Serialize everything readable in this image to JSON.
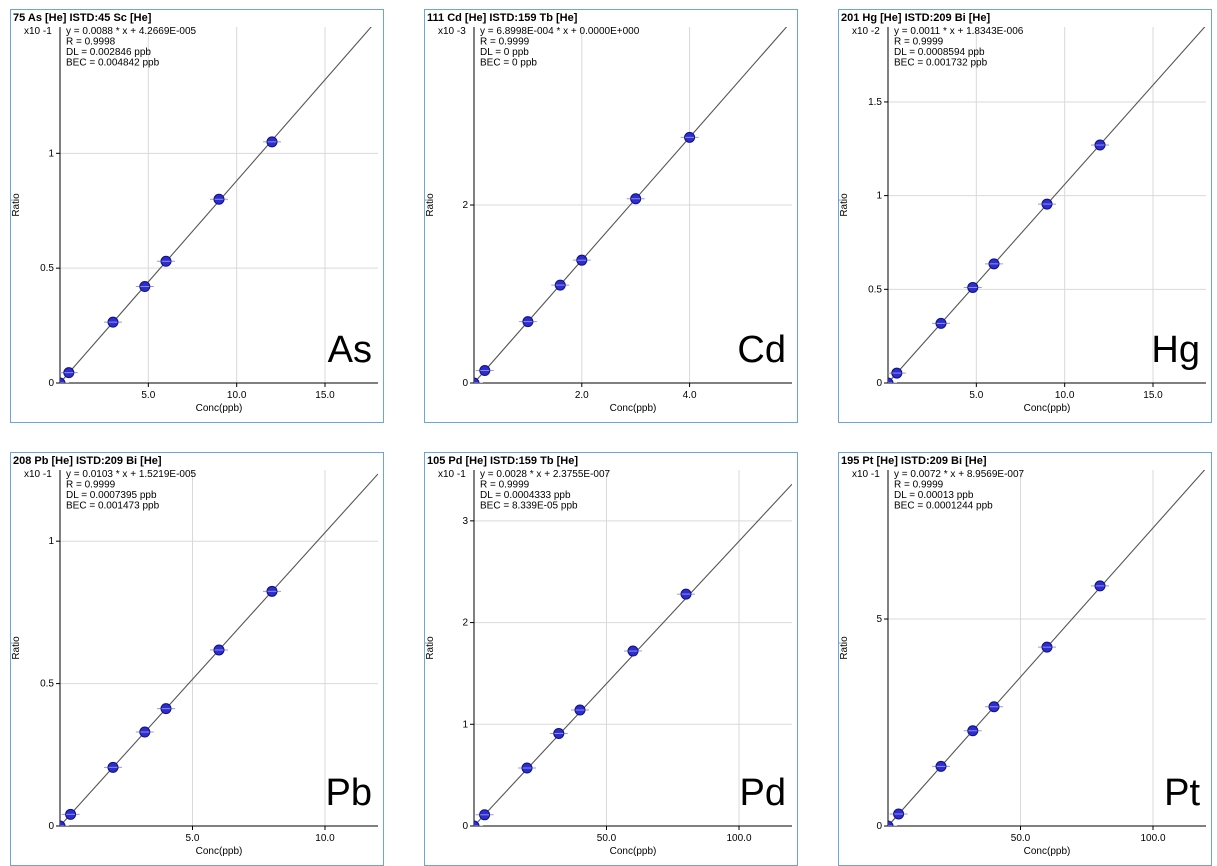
{
  "chart_data": [
    {
      "type": "scatter",
      "title": "75 As [He] ISTD:45 Sc [He]",
      "element": "As",
      "exponent_label": "x10 -1",
      "xlabel": "Conc(ppb)",
      "ylabel": "Ratio",
      "stats": [
        "y = 0.0088 * x  + 4.2669E-005",
        "R = 0.9998",
        "DL = 0.002846 ppb",
        "BEC = 0.004842 ppb"
      ],
      "xlim": [
        0,
        18
      ],
      "ylim": [
        0,
        1.55
      ],
      "xticks": [
        5,
        10,
        15
      ],
      "xtick_labels": [
        "5.0",
        "10.0",
        "15.0"
      ],
      "yticks": [
        0,
        0.5,
        1
      ],
      "ytick_labels": [
        "0",
        "0.5",
        "1"
      ],
      "grid": true,
      "fit": {
        "slope": 0.088,
        "intercept": 0.0004
      },
      "points": {
        "x": [
          0,
          0.5,
          3,
          4.8,
          6,
          9,
          12
        ],
        "y": [
          0,
          0.045,
          0.265,
          0.42,
          0.53,
          0.8,
          1.05
        ]
      }
    },
    {
      "type": "scatter",
      "title": "111 Cd [He] ISTD:159 Tb [He]",
      "element": "Cd",
      "exponent_label": "x10 -3",
      "xlabel": "Conc(ppb)",
      "ylabel": "Ratio",
      "stats": [
        "y = 6.8998E-004 * x  + 0.0000E+000",
        "R = 0.9999",
        "DL = 0 ppb",
        "BEC = 0 ppb"
      ],
      "xlim": [
        0,
        5.9
      ],
      "ylim": [
        0,
        4.0
      ],
      "xticks": [
        2,
        4
      ],
      "xtick_labels": [
        "2.0",
        "4.0"
      ],
      "yticks": [
        0,
        2
      ],
      "ytick_labels": [
        "0",
        "2"
      ],
      "grid": true,
      "fit": {
        "slope": 0.69,
        "intercept": 0
      },
      "points": {
        "x": [
          0,
          0.2,
          1,
          1.6,
          2,
          3,
          4
        ],
        "y": [
          0,
          0.14,
          0.69,
          1.1,
          1.38,
          2.07,
          2.76
        ]
      }
    },
    {
      "type": "scatter",
      "title": "201 Hg [He] ISTD:209 Bi [He]",
      "element": "Hg",
      "exponent_label": "x10 -2",
      "xlabel": "Conc(ppb)",
      "ylabel": "Ratio",
      "stats": [
        "y = 0.0011 * x  + 1.8343E-006",
        "R = 0.9999",
        "DL = 0.0008594 ppb",
        "BEC = 0.001732 ppb"
      ],
      "xlim": [
        0,
        18
      ],
      "ylim": [
        0,
        1.9
      ],
      "xticks": [
        5,
        10,
        15
      ],
      "xtick_labels": [
        "5.0",
        "10.0",
        "15.0"
      ],
      "yticks": [
        0,
        0.5,
        1,
        1.5
      ],
      "ytick_labels": [
        "0",
        "0.5",
        "1",
        "1.5"
      ],
      "grid": true,
      "fit": {
        "slope": 0.106,
        "intercept": 0
      },
      "points": {
        "x": [
          0,
          0.5,
          3,
          4.8,
          6,
          9,
          12
        ],
        "y": [
          0,
          0.053,
          0.318,
          0.51,
          0.636,
          0.955,
          1.27
        ]
      }
    },
    {
      "type": "scatter",
      "title": "208 Pb [He] ISTD:209 Bi [He]",
      "element": "Pb",
      "exponent_label": "x10 -1",
      "xlabel": "Conc(ppb)",
      "ylabel": "Ratio",
      "stats": [
        "y = 0.0103 * x  + 1.5219E-005",
        "R = 0.9999",
        "DL = 0.0007395 ppb",
        "BEC = 0.001473 ppb"
      ],
      "xlim": [
        0,
        12
      ],
      "ylim": [
        0,
        1.25
      ],
      "xticks": [
        5,
        10
      ],
      "xtick_labels": [
        "5.0",
        "10.0"
      ],
      "yticks": [
        0,
        0.5,
        1
      ],
      "ytick_labels": [
        "0",
        "0.5",
        "1"
      ],
      "grid": true,
      "fit": {
        "slope": 0.103,
        "intercept": 0.00015
      },
      "points": {
        "x": [
          0,
          0.4,
          2,
          3.2,
          4,
          6,
          8
        ],
        "y": [
          0,
          0.041,
          0.206,
          0.33,
          0.412,
          0.618,
          0.824
        ]
      }
    },
    {
      "type": "scatter",
      "title": "105 Pd [He] ISTD:159 Tb [He]",
      "element": "Pd",
      "exponent_label": "x10 -1",
      "xlabel": "Conc(ppb)",
      "ylabel": "Ratio",
      "stats": [
        "y = 0.0028 * x  + 2.3755E-007",
        "R = 0.9999",
        "DL = 0.0004333 ppb",
        "BEC = 8.339E-05 ppb"
      ],
      "xlim": [
        0,
        120
      ],
      "ylim": [
        0,
        3.5
      ],
      "xticks": [
        50,
        100
      ],
      "xtick_labels": [
        "50.0",
        "100.0"
      ],
      "yticks": [
        0,
        1,
        2,
        3
      ],
      "ytick_labels": [
        "0",
        "1",
        "2",
        "3"
      ],
      "grid": true,
      "fit": {
        "slope": 0.028,
        "intercept": 0
      },
      "points": {
        "x": [
          0,
          4,
          20,
          32,
          40,
          60,
          80
        ],
        "y": [
          0,
          0.11,
          0.57,
          0.91,
          1.14,
          1.72,
          2.28
        ]
      }
    },
    {
      "type": "scatter",
      "title": "195 Pt [He] ISTD:209 Bi [He]",
      "element": "Pt",
      "exponent_label": "x10 -1",
      "xlabel": "Conc(ppb)",
      "ylabel": "Ratio",
      "stats": [
        "y = 0.0072 * x  + 8.9569E-007",
        "R = 0.9999",
        "DL = 0.00013 ppb",
        "BEC = 0.0001244 ppb"
      ],
      "xlim": [
        0,
        120
      ],
      "ylim": [
        0,
        8.6
      ],
      "xticks": [
        50,
        100
      ],
      "xtick_labels": [
        "50.0",
        "100.0"
      ],
      "yticks": [
        0,
        5
      ],
      "ytick_labels": [
        "0",
        "5"
      ],
      "grid": true,
      "fit": {
        "slope": 0.072,
        "intercept": 0
      },
      "points": {
        "x": [
          0,
          4,
          20,
          32,
          40,
          60,
          80
        ],
        "y": [
          0,
          0.29,
          1.44,
          2.3,
          2.88,
          4.32,
          5.8
        ]
      }
    }
  ],
  "colors": {
    "frame": "#6aa7d8",
    "grid": "#d9d9d9",
    "axis": "#000000",
    "fit_line": "#555555",
    "point": "#2c2ccf",
    "point_edge": "#101080"
  }
}
